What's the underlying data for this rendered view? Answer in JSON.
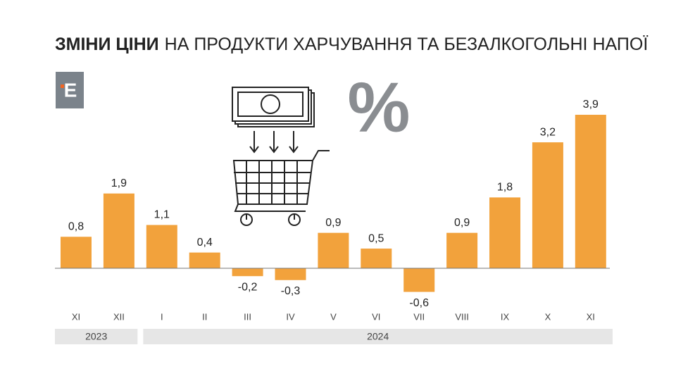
{
  "chart_data": {
    "type": "bar",
    "title_bold": "ЗМІНИ ЦІНИ",
    "title": "НА ПРОДУКТИ ХАРЧУВАННЯ ТА БЕЗАЛКОГОЛЬНІ НАПОЇ",
    "logo": "E",
    "symbol": "%",
    "categories": [
      "XI",
      "XII",
      "I",
      "II",
      "III",
      "IV",
      "V",
      "VI",
      "VII",
      "VIII",
      "IX",
      "X",
      "XI"
    ],
    "years": [
      "2023",
      "2023",
      "2024",
      "2024",
      "2024",
      "2024",
      "2024",
      "2024",
      "2024",
      "2024",
      "2024",
      "2024",
      "2024"
    ],
    "values": [
      0.8,
      1.9,
      1.1,
      0.4,
      -0.2,
      -0.3,
      0.9,
      0.5,
      -0.6,
      0.9,
      1.8,
      3.2,
      3.9
    ],
    "value_labels": [
      "0,8",
      "1,9",
      "1,1",
      "0,4",
      "-0,2",
      "-0,3",
      "0,9",
      "0,5",
      "-0,6",
      "0,9",
      "1,8",
      "3,2",
      "3,9"
    ],
    "color": "#f2a23c"
  }
}
